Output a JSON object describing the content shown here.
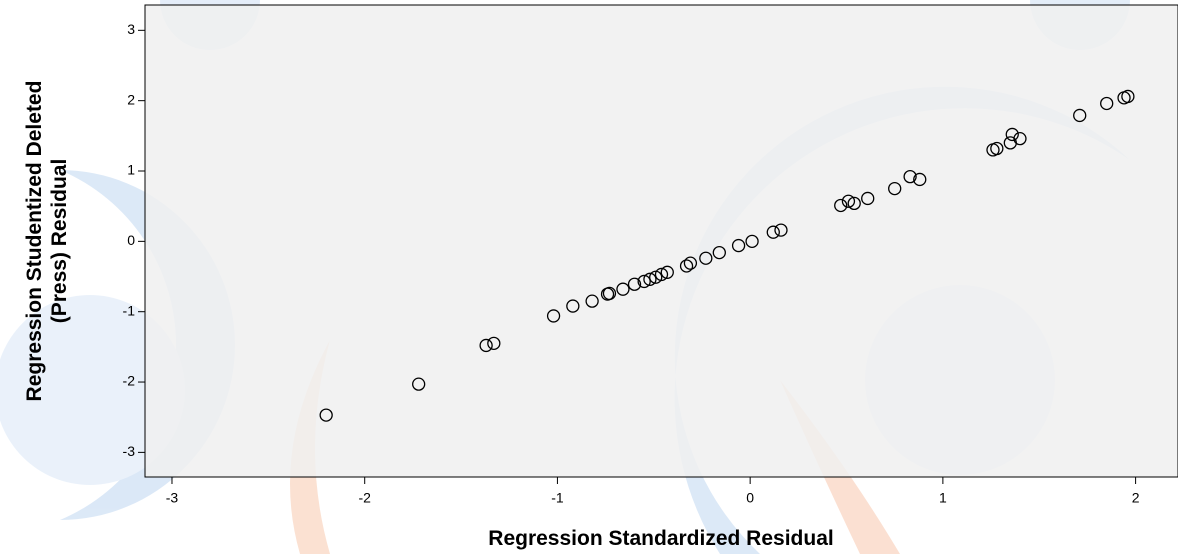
{
  "chart_data": {
    "type": "scatter",
    "xlabel": "Regression Standardized Residual",
    "ylabel": [
      "Regression Studentized Deleted",
      "(Press) Residual"
    ],
    "xlim": [
      -3.14,
      2.22
    ],
    "ylim": [
      -3.35,
      3.36
    ],
    "xticks": [
      -3,
      -2,
      -1,
      0,
      1,
      2
    ],
    "yticks": [
      -3,
      -2,
      -1,
      0,
      1,
      2,
      3
    ],
    "color": "#000000",
    "x": [
      -2.2,
      -1.72,
      -1.37,
      -1.33,
      -1.02,
      -0.92,
      -0.82,
      -0.74,
      -0.73,
      -0.66,
      -0.6,
      -0.55,
      -0.52,
      -0.49,
      -0.46,
      -0.43,
      -0.33,
      -0.31,
      -0.23,
      -0.16,
      -0.06,
      0.01,
      0.12,
      0.16,
      0.47,
      0.51,
      0.54,
      0.61,
      0.75,
      0.83,
      0.88,
      1.26,
      1.28,
      1.35,
      1.36,
      1.4,
      1.71,
      1.85,
      1.94,
      1.96
    ],
    "values": [
      -2.47,
      -2.03,
      -1.48,
      -1.45,
      -1.06,
      -0.92,
      -0.85,
      -0.75,
      -0.74,
      -0.68,
      -0.61,
      -0.57,
      -0.54,
      -0.51,
      -0.47,
      -0.44,
      -0.35,
      -0.31,
      -0.24,
      -0.16,
      -0.06,
      0.0,
      0.13,
      0.16,
      0.51,
      0.57,
      0.54,
      0.61,
      0.75,
      0.92,
      0.88,
      1.3,
      1.32,
      1.4,
      1.52,
      1.46,
      1.79,
      1.96,
      2.04,
      2.06
    ]
  }
}
